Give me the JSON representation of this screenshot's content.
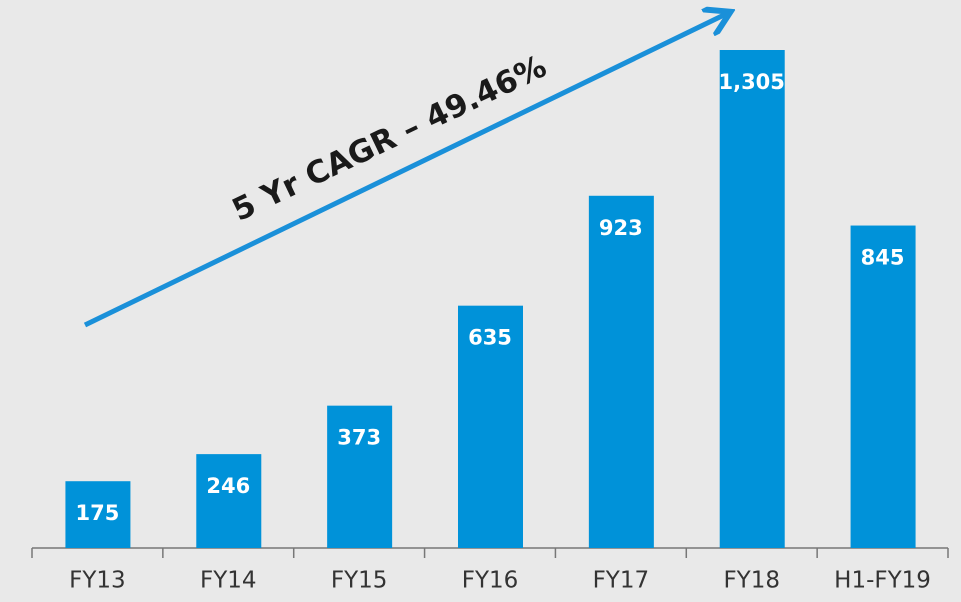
{
  "chart_data": {
    "type": "bar",
    "categories": [
      "FY13",
      "FY14",
      "FY15",
      "FY16",
      "FY17",
      "FY18",
      "H1-FY19"
    ],
    "values": [
      175,
      246,
      373,
      635,
      923,
      1305,
      845
    ],
    "value_labels": [
      "175",
      "246",
      "373",
      "635",
      "923",
      "1,305",
      "845"
    ],
    "color": "#0092d9",
    "annotation": "5 Yr CAGR – 49.46%"
  }
}
